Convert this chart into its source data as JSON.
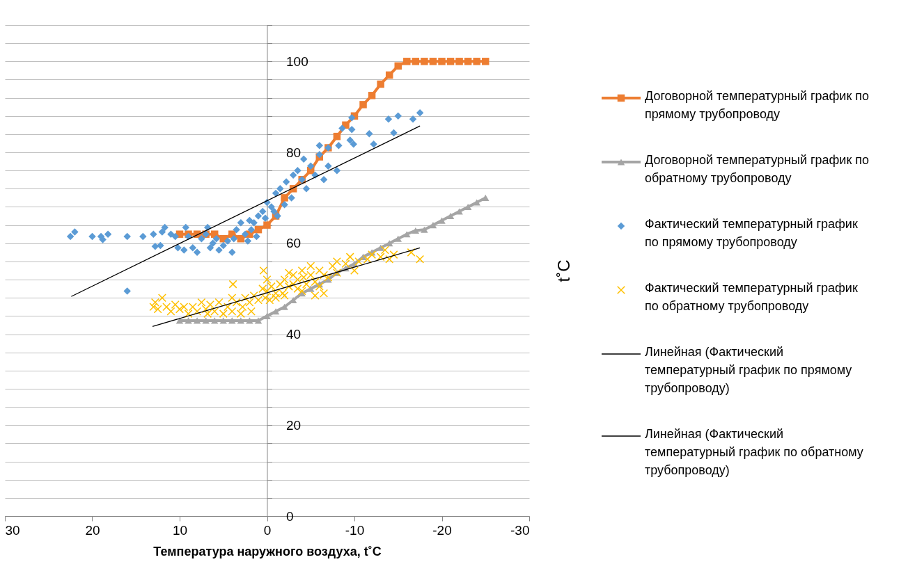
{
  "chart_data": {
    "type": "scatter",
    "xlabel": "Температура наружного воздуха, t˚C",
    "ylabel": "t˚C",
    "xlim": [
      30,
      -30
    ],
    "xticks": [
      30,
      20,
      10,
      0,
      -10,
      -20,
      -30
    ],
    "ylim": [
      0,
      108
    ],
    "yticks": [
      0,
      {
        "value": 4,
        "label": null
      },
      {
        "value": 8,
        "label": null
      },
      {
        "value": 12,
        "label": null
      },
      {
        "value": 16,
        "label": null
      },
      20,
      {
        "value": 24,
        "label": null
      },
      {
        "value": 28,
        "label": null
      },
      {
        "value": 32,
        "label": null
      },
      {
        "value": 36,
        "label": null
      },
      40,
      {
        "value": 44,
        "label": null
      },
      {
        "value": 48,
        "label": null
      },
      {
        "value": 52,
        "label": null
      },
      {
        "value": 56,
        "label": null
      },
      60,
      {
        "value": 64,
        "label": null
      },
      {
        "value": 68,
        "label": null
      },
      {
        "value": 72,
        "label": null
      },
      {
        "value": 76,
        "label": null
      },
      80,
      {
        "value": 84,
        "label": null
      },
      {
        "value": 88,
        "label": null
      },
      {
        "value": 92,
        "label": null
      },
      {
        "value": 96,
        "label": null
      },
      100,
      {
        "value": 104,
        "label": null
      },
      {
        "value": 108,
        "label": null
      }
    ],
    "grid": "y",
    "legend": "right",
    "series": [
      {
        "type": "line",
        "name": "Договорной температурный график по прямому трубопроводу",
        "color": "#ed7d31",
        "marker": "square",
        "x": [
          10,
          9,
          8,
          7,
          6,
          5,
          4,
          3,
          2,
          1,
          0,
          -1,
          -2,
          -3,
          -4,
          -5,
          -6,
          -7,
          -8,
          -9,
          -10,
          -11,
          -12,
          -13,
          -14,
          -15,
          -16,
          -17,
          -18,
          -19,
          -20,
          -21,
          -22,
          -23,
          -24,
          -25
        ],
        "values": [
          62,
          62,
          62,
          62,
          62,
          61,
          62,
          61,
          62,
          63,
          64,
          66,
          70,
          72,
          74,
          76,
          79,
          81,
          83.5,
          86,
          88,
          90.5,
          92.5,
          95,
          97,
          99,
          100,
          100,
          100,
          100,
          100,
          100,
          100,
          100,
          100,
          100
        ]
      },
      {
        "type": "line",
        "name": "Договорной температурный график по обратному трубопроводу",
        "color": "#a5a5a5",
        "marker": "triangle",
        "x": [
          10,
          9,
          8,
          7,
          6,
          5,
          4,
          3,
          2,
          1,
          0,
          -1,
          -2,
          -3,
          -4,
          -5,
          -6,
          -7,
          -8,
          -9,
          -10,
          -11,
          -12,
          -13,
          -14,
          -15,
          -16,
          -17,
          -18,
          -19,
          -20,
          -21,
          -22,
          -23,
          -24,
          -25
        ],
        "values": [
          43,
          43,
          43,
          43,
          43,
          43,
          43,
          43,
          43,
          43,
          44,
          45,
          46,
          47.5,
          49,
          50,
          51,
          52,
          53.5,
          54.5,
          55.5,
          57,
          58,
          59,
          60,
          61,
          62,
          62.8,
          63,
          64,
          65,
          66,
          67,
          68,
          69,
          70
        ]
      },
      {
        "type": "scatter",
        "name": "Фактический температурный график по прямому трубопроводу",
        "color": "#5b9bd5",
        "marker": "diamond",
        "x": [
          22.5,
          22,
          20,
          19,
          18.8,
          18.2,
          16,
          14.2,
          13,
          12.8,
          12.2,
          12,
          11.7,
          11,
          10.5,
          10.2,
          9.5,
          9.3,
          9,
          8.5,
          8,
          7.5,
          7,
          6.8,
          6.5,
          6.2,
          5.8,
          5.5,
          5,
          4.5,
          4,
          3.8,
          3.5,
          3,
          2.5,
          2.2,
          2,
          1.8,
          1.5,
          1.2,
          1,
          0.5,
          0.2,
          0,
          -0.5,
          -0.8,
          -1,
          -1.2,
          -1.5,
          -2,
          -2.2,
          -2.8,
          -3,
          -3.5,
          -4,
          -4.2,
          -4.5,
          -5,
          -5.5,
          -6,
          -6,
          -6.5,
          -7,
          -7,
          -8,
          -8.2,
          -8.6,
          -9.7,
          -9.7,
          -9.5,
          -9.9,
          -11.7,
          -12.2,
          -13.9,
          -14.5,
          -15,
          -16.7,
          -17.5,
          16
        ],
        "values": [
          61.5,
          62.5,
          61.5,
          61.5,
          60.8,
          62,
          61.5,
          61.5,
          62,
          59.3,
          59.5,
          62.5,
          63.5,
          62,
          61.5,
          59,
          58.5,
          63.5,
          61.5,
          59,
          58,
          61,
          62,
          63.5,
          59,
          60,
          61,
          58.5,
          59.5,
          60.5,
          58,
          61,
          63,
          64.5,
          62,
          60.5,
          65,
          63,
          64.5,
          61.5,
          66,
          67,
          65.5,
          69,
          68,
          67,
          71,
          66,
          72,
          68.5,
          73.5,
          70,
          75,
          76,
          74,
          78.5,
          72,
          77,
          75,
          79.5,
          81.5,
          74,
          81,
          77,
          76,
          81.5,
          85.3,
          87.6,
          85,
          82.7,
          81.8,
          84.1,
          81.8,
          87.3,
          84.3,
          88,
          87.3,
          88.7,
          49.5
        ]
      },
      {
        "type": "scatter",
        "name": "Фактический температурный график по обратному трубопроводу",
        "color": "#ffc000",
        "marker": "cross",
        "x": [
          13,
          12.8,
          12.5,
          12,
          11.5,
          11,
          10.5,
          10,
          9.5,
          9,
          8.5,
          8,
          7.5,
          7,
          6.8,
          6.5,
          6,
          5.5,
          5,
          4.5,
          4,
          4,
          3.9,
          3.5,
          3,
          2.8,
          2.5,
          2,
          1.8,
          1.5,
          1,
          0.4,
          0.5,
          0.2,
          0,
          0,
          -0.3,
          -0.5,
          -1,
          -1,
          -1.5,
          -1.8,
          -2,
          -2,
          -2.5,
          -2.5,
          -3,
          -3,
          -3.5,
          -3.5,
          -4,
          -4,
          -4.2,
          -4.5,
          -5,
          -5,
          -5.5,
          -5.5,
          -6,
          -6,
          -6.5,
          -6.5,
          -7,
          -7.5,
          -8,
          -8,
          -9,
          -9.5,
          -10,
          -10.5,
          -11.5,
          -12,
          -13,
          -13.5,
          -14,
          -14.5,
          -16.5,
          -17.5
        ],
        "values": [
          46,
          47,
          45.5,
          48,
          46,
          45,
          46.5,
          45.5,
          46,
          44.5,
          46,
          45,
          47,
          45.5,
          44.5,
          46.5,
          45,
          47,
          44.5,
          46,
          48,
          45,
          51,
          47,
          44.5,
          46,
          48,
          47,
          45,
          48.5,
          47.5,
          54,
          50,
          48,
          52,
          49.5,
          47.5,
          50.5,
          49,
          48,
          51,
          49,
          52,
          48.5,
          50.5,
          53.5,
          53,
          51,
          52,
          50,
          54,
          49.5,
          52.5,
          51,
          55,
          53,
          51.5,
          48.5,
          54,
          50.5,
          53,
          49,
          52.5,
          55,
          56,
          53.5,
          55.5,
          57,
          54,
          56,
          56.5,
          57.5,
          57,
          58.5,
          56.5,
          57.5,
          58,
          56.5
        ]
      },
      {
        "type": "line",
        "name": "Линейная (Фактический температурный график по прямому трубопроводу)",
        "color": "#000000",
        "marker": "none",
        "x": [
          22.4,
          -17.5
        ],
        "values": [
          48.3,
          85.8
        ]
      },
      {
        "type": "line",
        "name": "Линейная (Фактический температурный график по обратному трубопроводу)",
        "color": "#000000",
        "marker": "none",
        "x": [
          13.1,
          -17.5
        ],
        "values": [
          41.7,
          59
        ]
      }
    ]
  }
}
